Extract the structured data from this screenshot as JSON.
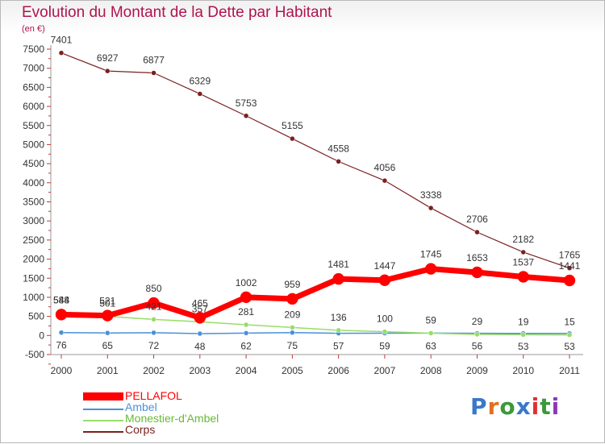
{
  "header": {
    "title": "Evolution du Montant de la Dette par Habitant",
    "unit": "(en €)"
  },
  "chart_data": {
    "type": "line",
    "title": "Evolution du Montant de la Dette par Habitant",
    "ylabel": "(en €)",
    "xlabel": "",
    "x": [
      "2000",
      "2001",
      "2002",
      "2003",
      "2004",
      "2005",
      "2006",
      "2007",
      "2008",
      "2009",
      "2010",
      "2011"
    ],
    "ylim": [
      -500,
      7500
    ],
    "yticks": [
      -500,
      0,
      500,
      1000,
      1500,
      2000,
      2500,
      3000,
      3500,
      4000,
      4500,
      5000,
      5500,
      6000,
      6500,
      7000,
      7500
    ],
    "ytick_labels": [
      "-500",
      "0",
      "500",
      "1000",
      "1500",
      "2000",
      "2500",
      "3000",
      "3500",
      "4000",
      "4500",
      "5000",
      "5500",
      "6000",
      "6500",
      "7000",
      "7500"
    ],
    "grid": false,
    "legend_position": "bottom-left",
    "series": [
      {
        "name": "PELLAFOL",
        "color": "#ff0000",
        "values": [
          548,
          521,
          850,
          465,
          1002,
          959,
          1481,
          1447,
          1745,
          1653,
          1537,
          1441
        ],
        "labels": [
          "548",
          "521",
          "850",
          "465",
          "1002",
          "959",
          "1481",
          "1447",
          "1745",
          "1653",
          "1537",
          "1441"
        ]
      },
      {
        "name": "Ambel",
        "color": "#4a90d9",
        "values": [
          76,
          65,
          72,
          48,
          62,
          75,
          57,
          59,
          63,
          56,
          53,
          53
        ],
        "labels": [
          "76",
          "65",
          "72",
          "48",
          "62",
          "75",
          "57",
          "59",
          "63",
          "56",
          "53",
          "53"
        ]
      },
      {
        "name": "Monestier-d'Ambel",
        "color": "#99dd66",
        "values": [
          584,
          501,
          421,
          357,
          281,
          209,
          136,
          100,
          59,
          29,
          19,
          15
        ],
        "labels": [
          "584",
          "501",
          "421",
          "357",
          "281",
          "209",
          "136",
          "100",
          "59",
          "29",
          "19",
          "15"
        ]
      },
      {
        "name": "Corps",
        "color": "#7a2020",
        "values": [
          7401,
          6927,
          6877,
          6329,
          5753,
          5155,
          4558,
          4056,
          3338,
          2706,
          2182,
          1765
        ],
        "labels": [
          "7401",
          "6927",
          "6877",
          "6329",
          "5753",
          "5155",
          "4558",
          "4056",
          "3338",
          "2706",
          "2182",
          "1765"
        ]
      }
    ]
  },
  "logo": {
    "letters": [
      "P",
      "r",
      "o",
      "x",
      "i",
      "t",
      "i"
    ],
    "colors": [
      "#3a78c8",
      "#e07020",
      "#3a9a3a",
      "#3a78c8",
      "#e03030",
      "#3a9a3a",
      "#8a3ab8"
    ]
  }
}
